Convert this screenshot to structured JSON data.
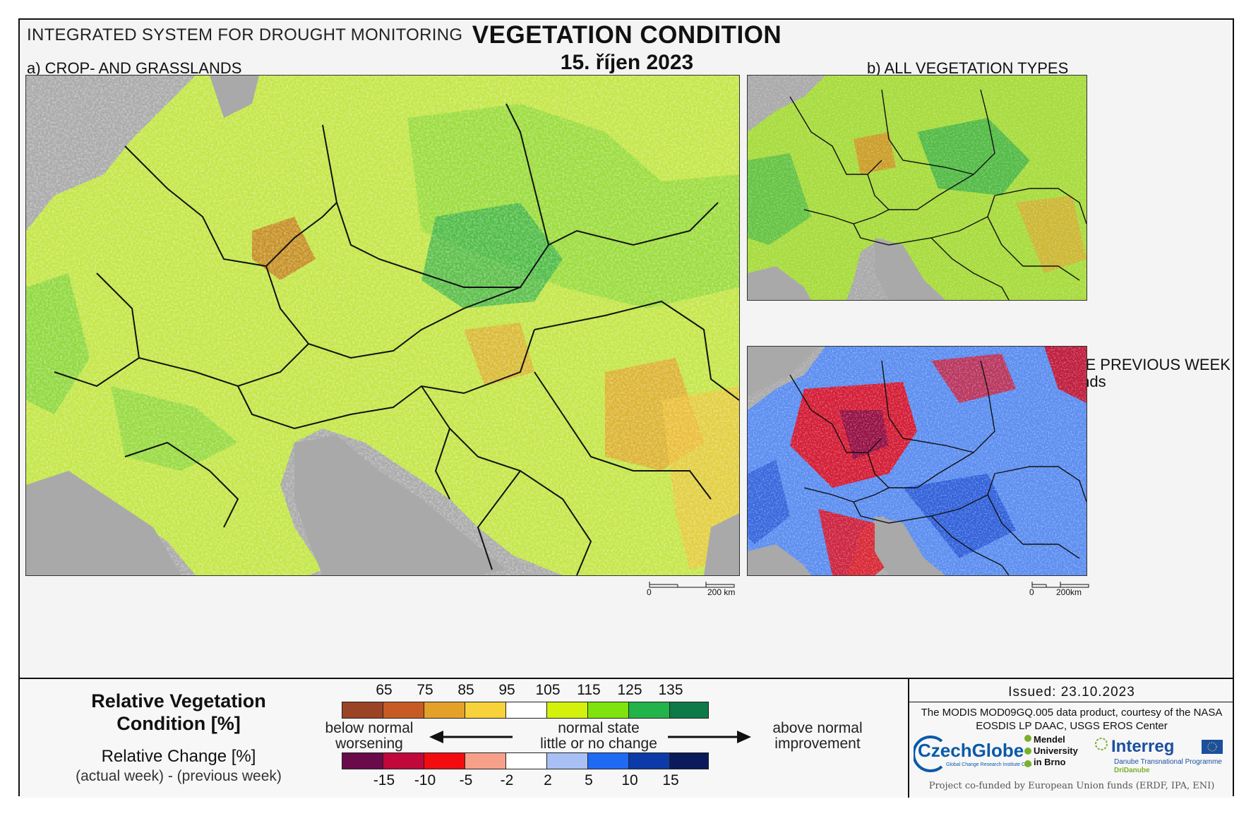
{
  "header": {
    "system": "INTEGRATED SYSTEM FOR DROUGHT MONITORING",
    "title": "VEGETATION CONDITION",
    "date": "15. říjen 2023"
  },
  "panels": {
    "a_title": "a) CROP- AND GRASSLANDS",
    "b_title": "b) ALL VEGETATION TYPES",
    "c_title": "c) CHANGE COMPARED WITH THE PREVIOUS WEEK",
    "c_subtitle": "for crop- and grasslands"
  },
  "scale_bars": {
    "a": {
      "start": "0",
      "end": "200 km"
    },
    "c": {
      "start": "0",
      "end": "200km"
    }
  },
  "legend": {
    "rvc_title_1": "Relative Vegetation",
    "rvc_title_2": "Condition [%]",
    "rc_title": "Relative Change [%]",
    "rc_sub": "(actual week) - (previous week)",
    "rvc_ticks": [
      "65",
      "75",
      "85",
      "95",
      "105",
      "115",
      "125",
      "135"
    ],
    "rvc_colors": [
      "#9a4325",
      "#c75b24",
      "#e4a12a",
      "#f7d23a",
      "#ffffff",
      "#d4f10c",
      "#7fe40e",
      "#22b34a",
      "#0e7a47"
    ],
    "rc_ticks": [
      "-15",
      "-10",
      "-5",
      "-2",
      "2",
      "5",
      "10",
      "15"
    ],
    "rc_colors": [
      "#6a0a4a",
      "#c0083a",
      "#f20c10",
      "#f6a08a",
      "#ffffff",
      "#a9c0f4",
      "#1f6af2",
      "#0c3aa8",
      "#0a1a5a"
    ],
    "left_1": "below normal",
    "left_2": "worsening",
    "mid_1": "normal state",
    "mid_2": "little or no change",
    "right_1": "above normal",
    "right_2": "improvement"
  },
  "credits": {
    "issued": "Issued: 23.10.2023",
    "source": "The MODIS MOD09GQ.005 data product, courtesy of the NASA EOSDIS LP DAAC, USGS EROS Center",
    "czechglobe": "CzechGlobe",
    "czechglobe_sub": "Global Change Research Institute CAS",
    "mendel": "Mendel\nUniversity\nin Brno",
    "interreg": "Interreg",
    "interreg_sub": "Danube Transnational Programme",
    "dridanube": "DriDanube",
    "cofunded": "Project co-funded by European Union funds (ERDF, IPA, ENI)"
  },
  "colors": {
    "sea": "#a9a9a9",
    "border": "#111111"
  }
}
